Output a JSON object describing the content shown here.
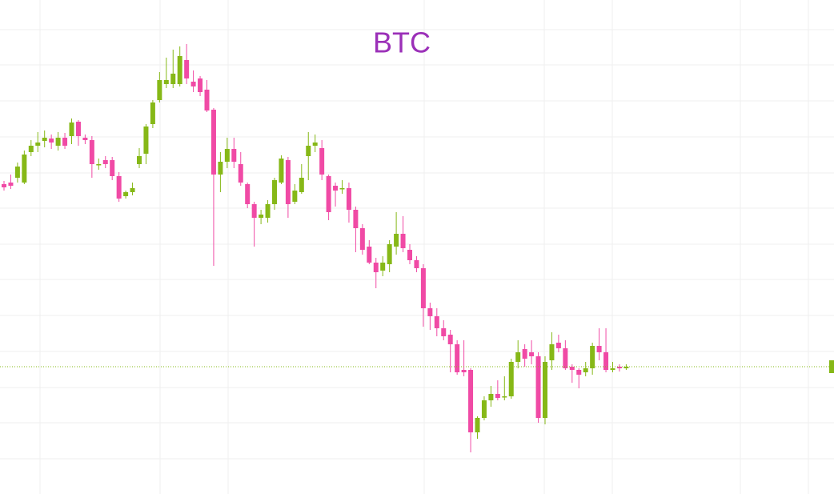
{
  "chart_data": {
    "type": "candlestick",
    "title": "BTC",
    "title_color": "#9b30b8",
    "up_color": "#86b817",
    "down_color": "#f04aa5",
    "grid": true,
    "ylim": [
      0,
      617
    ],
    "yticks": [
      44,
      89,
      133,
      178,
      223,
      268,
      312,
      357,
      401,
      446,
      491,
      536,
      580
    ],
    "open": [
      387,
      389,
      395,
      389,
      427,
      435,
      441,
      444,
      435,
      445,
      447,
      465,
      445,
      442,
      412,
      417,
      417,
      397,
      372,
      377,
      412,
      425,
      462,
      492,
      512,
      512,
      512,
      542,
      515,
      519,
      505,
      480,
      399,
      415,
      431,
      412,
      387,
      362,
      345,
      345,
      362,
      389,
      417,
      365,
      377,
      422,
      435,
      432,
      397,
      385,
      382,
      382,
      355,
      332,
      309,
      289,
      279,
      287,
      309,
      325,
      305,
      292,
      282,
      232,
      222,
      207,
      199,
      187,
      155,
      155,
      77,
      95,
      117,
      125,
      122,
      122,
      165,
      181,
      177,
      172,
      95,
      167,
      189,
      182,
      159,
      155,
      152,
      157,
      185,
      177,
      155,
      159,
      157
    ],
    "high": [
      391,
      399,
      414,
      429,
      442,
      452,
      454,
      449,
      452,
      451,
      469,
      467,
      449,
      447,
      419,
      422,
      421,
      402,
      379,
      389,
      432,
      462,
      492,
      527,
      545,
      555,
      559,
      562,
      529,
      522,
      517,
      482,
      427,
      445,
      445,
      427,
      389,
      365,
      355,
      367,
      395,
      423,
      421,
      387,
      412,
      452,
      449,
      442,
      399,
      389,
      392,
      389,
      359,
      337,
      317,
      295,
      297,
      317,
      352,
      347,
      312,
      297,
      287,
      239,
      232,
      217,
      205,
      192,
      192,
      157,
      97,
      122,
      135,
      142,
      147,
      169,
      192,
      187,
      192,
      177,
      172,
      202,
      199,
      192,
      162,
      157,
      165,
      189,
      207,
      207,
      165,
      162,
      162
    ],
    "low": [
      379,
      381,
      389,
      387,
      422,
      427,
      433,
      431,
      429,
      431,
      437,
      435,
      437,
      395,
      405,
      407,
      392,
      365,
      369,
      373,
      407,
      412,
      457,
      489,
      507,
      507,
      509,
      512,
      502,
      497,
      477,
      285,
      377,
      407,
      407,
      385,
      357,
      309,
      337,
      339,
      355,
      387,
      345,
      362,
      375,
      392,
      427,
      392,
      342,
      359,
      375,
      339,
      302,
      299,
      287,
      257,
      272,
      277,
      299,
      302,
      287,
      277,
      209,
      205,
      197,
      192,
      152,
      149,
      147,
      52,
      69,
      92,
      109,
      117,
      117,
      119,
      157,
      159,
      162,
      89,
      87,
      155,
      177,
      155,
      139,
      132,
      147,
      149,
      167,
      152,
      152,
      153,
      155
    ],
    "close": [
      383,
      385,
      409,
      424,
      435,
      439,
      445,
      439,
      445,
      435,
      464,
      447,
      442,
      412,
      412,
      412,
      397,
      369,
      377,
      382,
      422,
      459,
      489,
      517,
      517,
      525,
      547,
      519,
      509,
      502,
      479,
      399,
      415,
      431,
      415,
      389,
      362,
      345,
      349,
      362,
      392,
      419,
      362,
      379,
      395,
      435,
      439,
      399,
      352,
      379,
      382,
      355,
      332,
      305,
      289,
      277,
      289,
      312,
      325,
      307,
      292,
      282,
      232,
      222,
      207,
      197,
      187,
      152,
      152,
      77,
      95,
      117,
      125,
      120,
      122,
      165,
      177,
      169,
      172,
      95,
      165,
      187,
      182,
      157,
      155,
      149,
      157,
      185,
      177,
      155,
      157,
      157,
      159
    ]
  }
}
